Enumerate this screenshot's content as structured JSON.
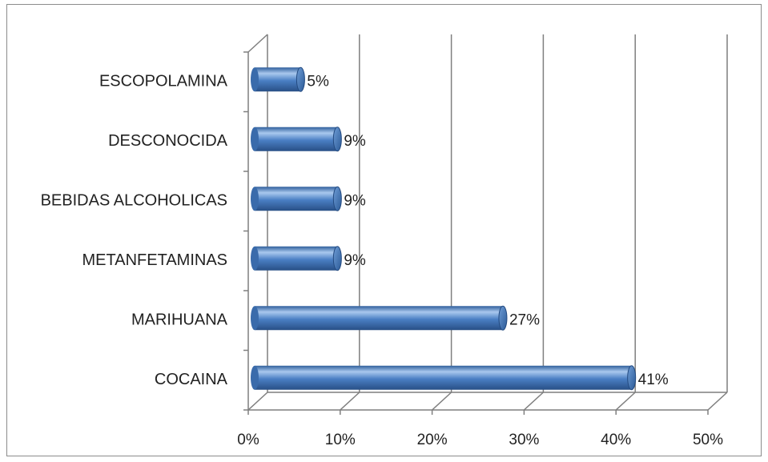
{
  "chart_data": {
    "type": "bar",
    "orientation": "horizontal",
    "style": "3d-cylinder",
    "categories": [
      "COCAINA",
      "MARIHUANA",
      "METANFETAMINAS",
      "BEBIDAS ALCOHOLICAS",
      "DESCONOCIDA",
      "ESCOPOLAMINA"
    ],
    "values": [
      41,
      27,
      9,
      9,
      9,
      5
    ],
    "data_labels": [
      "41%",
      "27%",
      "9%",
      "9%",
      "9%",
      "5%"
    ],
    "xlim": [
      0,
      50
    ],
    "x_ticks": [
      "0%",
      "10%",
      "20%",
      "30%",
      "40%",
      "50%"
    ],
    "x_tick_values": [
      0,
      10,
      20,
      30,
      40,
      50
    ],
    "grid": "vertical",
    "legend": "none",
    "title": "",
    "xlabel": "",
    "ylabel": "",
    "colors": {
      "bar_fill": "#4a7fc4",
      "bar_dark": "#2b5a97",
      "bar_light": "#9cc0ea",
      "grid": "#7f7f7f",
      "border": "#8c8c8c"
    }
  }
}
